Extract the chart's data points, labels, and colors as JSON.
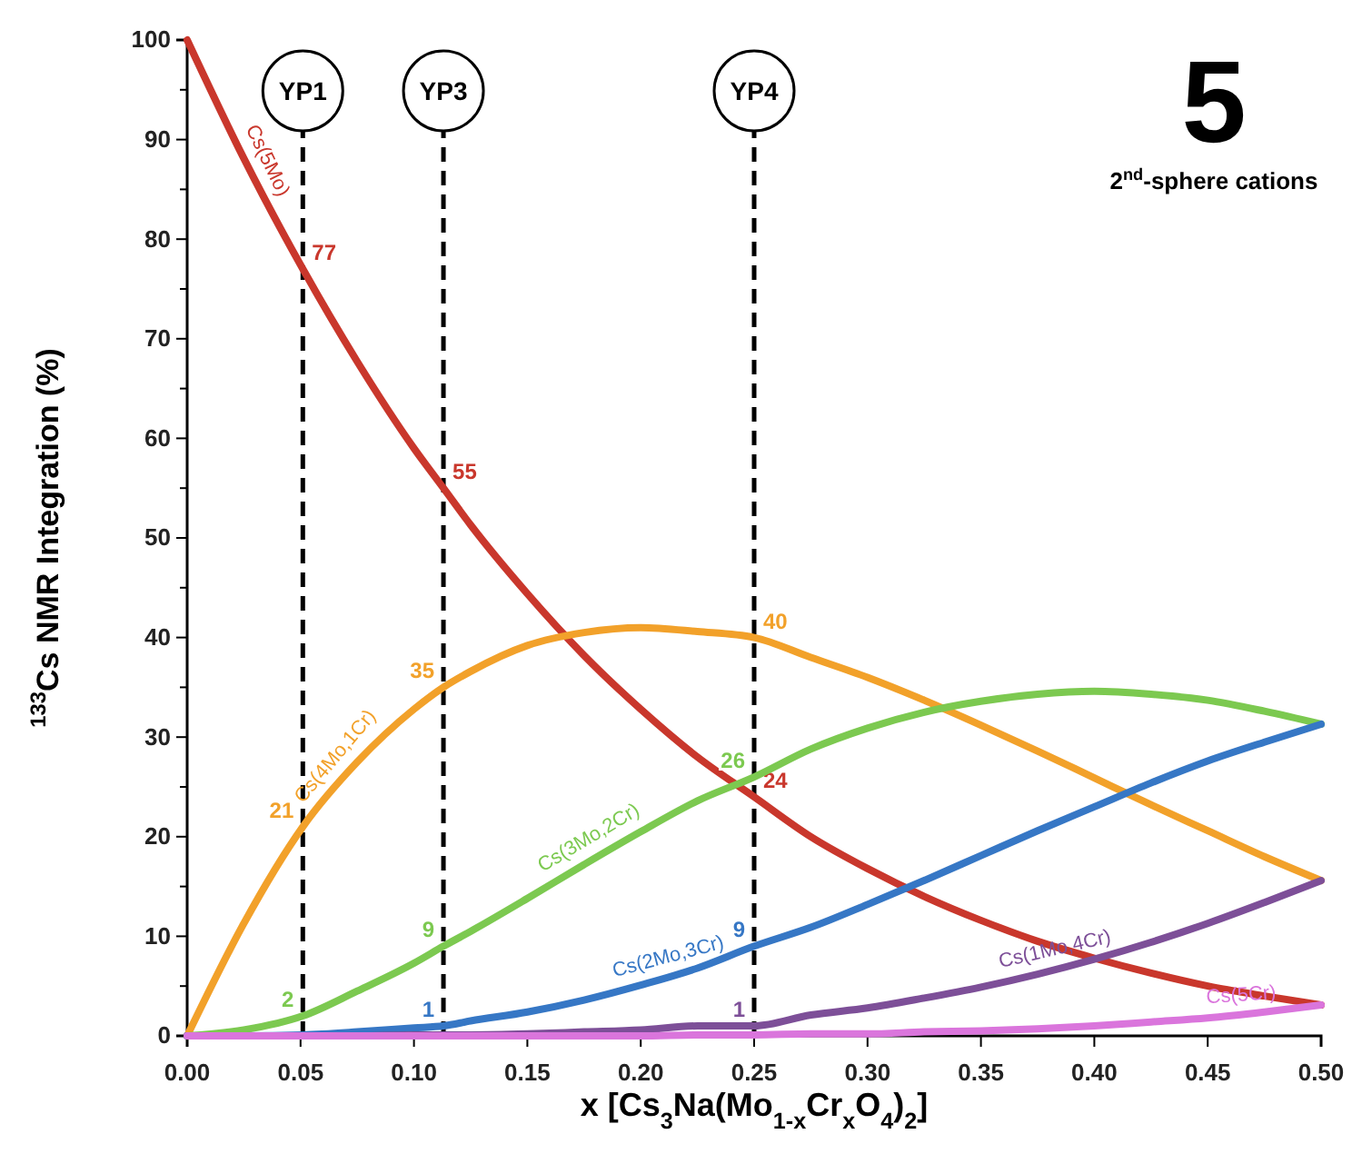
{
  "chart_data": {
    "type": "line",
    "xlabel": "x [Cs$_{3}$Na(Mo$_{1-x}$Cr$_{x}$O$_{4}$)$_{2}$]",
    "ylabel": "$^{133}$Cs NMR Integration (%)",
    "xlim": [
      0,
      0.5
    ],
    "xticks": [
      {
        "value": 0,
        "label": "0.00"
      },
      {
        "value": 0.05,
        "label": "0.05"
      },
      {
        "value": 0.1,
        "label": "0.10"
      },
      {
        "value": 0.15,
        "label": "0.15"
      },
      {
        "value": 0.2,
        "label": "0.20"
      },
      {
        "value": 0.25,
        "label": "0.25"
      },
      {
        "value": 0.3,
        "label": "0.30"
      },
      {
        "value": 0.35,
        "label": "0.35"
      },
      {
        "value": 0.4,
        "label": "0.40"
      },
      {
        "value": 0.45,
        "label": "0.45"
      },
      {
        "value": 0.5,
        "label": "0.50"
      }
    ],
    "ylim": [
      0,
      100
    ],
    "yticks": [
      0,
      {
        "value": 5,
        "label": null
      },
      10,
      {
        "value": 15,
        "label": null
      },
      20,
      {
        "value": 25,
        "label": null
      },
      30,
      {
        "value": 35,
        "label": null
      },
      40,
      {
        "value": 45,
        "label": null
      },
      50,
      {
        "value": 55,
        "label": null
      },
      60,
      {
        "value": 65,
        "label": null
      },
      70,
      {
        "value": 75,
        "label": null
      },
      80,
      {
        "value": 85,
        "label": null
      },
      90,
      {
        "value": 95,
        "label": null
      },
      100
    ],
    "grid": false,
    "legend": false,
    "marker": "none",
    "line_style": "solid",
    "x": [
      0,
      0.025,
      0.051,
      0.075,
      0.1,
      0.113,
      0.125,
      0.15,
      0.175,
      0.2,
      0.225,
      0.25,
      0.275,
      0.3,
      0.325,
      0.35,
      0.375,
      0.4,
      0.425,
      0.45,
      0.475,
      0.5
    ],
    "series": [
      {
        "name": "Cs(5Mo)",
        "color": "#c9372c",
        "values": [
          100,
          88.1,
          77,
          67.7,
          59.0,
          55,
          51.3,
          44.4,
          38.2,
          32.8,
          28.0,
          24,
          20.0,
          16.8,
          14.0,
          11.6,
          9.5,
          7.8,
          6.3,
          5.0,
          4.0,
          3.1
        ],
        "value_labels": [
          null,
          null,
          "77",
          null,
          null,
          "55",
          null,
          null,
          null,
          null,
          null,
          "24",
          null,
          null,
          null,
          null,
          null,
          null,
          null,
          null,
          null,
          null
        ]
      },
      {
        "name": "Cs(4Mo,1Cr)",
        "color": "#f2a12a",
        "values": [
          0,
          11.3,
          21,
          27.5,
          32.8,
          35,
          36.6,
          39.2,
          40.5,
          41.0,
          40.6,
          40,
          38.0,
          36.0,
          33.7,
          31.2,
          28.6,
          25.9,
          23.2,
          20.6,
          18.0,
          15.6
        ],
        "value_labels": [
          null,
          null,
          "21",
          null,
          null,
          "35",
          null,
          null,
          null,
          null,
          null,
          "40",
          null,
          null,
          null,
          null,
          null,
          null,
          null,
          null,
          null,
          null
        ]
      },
      {
        "name": "Cs(3Mo,2Cr)",
        "color": "#7cc950",
        "values": [
          0,
          0.6,
          2,
          4.5,
          7.3,
          9,
          10.5,
          13.8,
          17.2,
          20.5,
          23.6,
          26,
          28.8,
          30.9,
          32.5,
          33.6,
          34.3,
          34.6,
          34.3,
          33.7,
          32.6,
          31.3
        ],
        "value_labels": [
          null,
          null,
          "2",
          null,
          null,
          "9",
          null,
          null,
          null,
          null,
          null,
          "26",
          null,
          null,
          null,
          null,
          null,
          null,
          null,
          null,
          null,
          null
        ]
      },
      {
        "name": "Cs(2Mo,3Cr)",
        "color": "#3677c5",
        "values": [
          0,
          0,
          0.1,
          0.4,
          0.8,
          1,
          1.5,
          2.4,
          3.6,
          5.1,
          6.8,
          9,
          10.9,
          13.2,
          15.6,
          18.1,
          20.6,
          23.0,
          25.4,
          27.6,
          29.5,
          31.3
        ],
        "value_labels": [
          null,
          null,
          null,
          null,
          null,
          "1",
          null,
          null,
          null,
          null,
          null,
          "9",
          null,
          null,
          null,
          null,
          null,
          null,
          null,
          null,
          null,
          null
        ]
      },
      {
        "name": "Cs(1Mo,4Cr)",
        "color": "#7d4f98",
        "values": [
          0,
          0,
          0,
          0,
          0.1,
          0.1,
          0.1,
          0.2,
          0.4,
          0.6,
          1.0,
          1,
          2.1,
          2.8,
          3.8,
          4.9,
          6.2,
          7.7,
          9.4,
          11.3,
          13.4,
          15.6
        ],
        "value_labels": [
          null,
          null,
          null,
          null,
          null,
          null,
          null,
          null,
          null,
          null,
          null,
          "1",
          null,
          null,
          null,
          null,
          null,
          null,
          null,
          null,
          null,
          null
        ]
      },
      {
        "name": "Cs(5Cr)",
        "color": "#da75dc",
        "values": [
          0,
          0,
          0,
          0,
          0,
          0,
          0,
          0,
          0,
          0,
          0.1,
          0.1,
          0.2,
          0.2,
          0.4,
          0.5,
          0.7,
          1.0,
          1.4,
          1.8,
          2.4,
          3.1
        ]
      }
    ],
    "ref_lines": [
      {
        "axis": "x",
        "value": 0.051,
        "label": "YP1",
        "color": "#000000",
        "line_style": "dashed"
      },
      {
        "axis": "x",
        "value": 0.113,
        "label": "YP3",
        "color": "#000000",
        "line_style": "dashed"
      },
      {
        "axis": "x",
        "value": 0.25,
        "label": "YP4",
        "color": "#000000",
        "line_style": "dashed"
      }
    ],
    "annotations": [
      "5",
      "2$^{nd}$-sphere cations"
    ]
  }
}
